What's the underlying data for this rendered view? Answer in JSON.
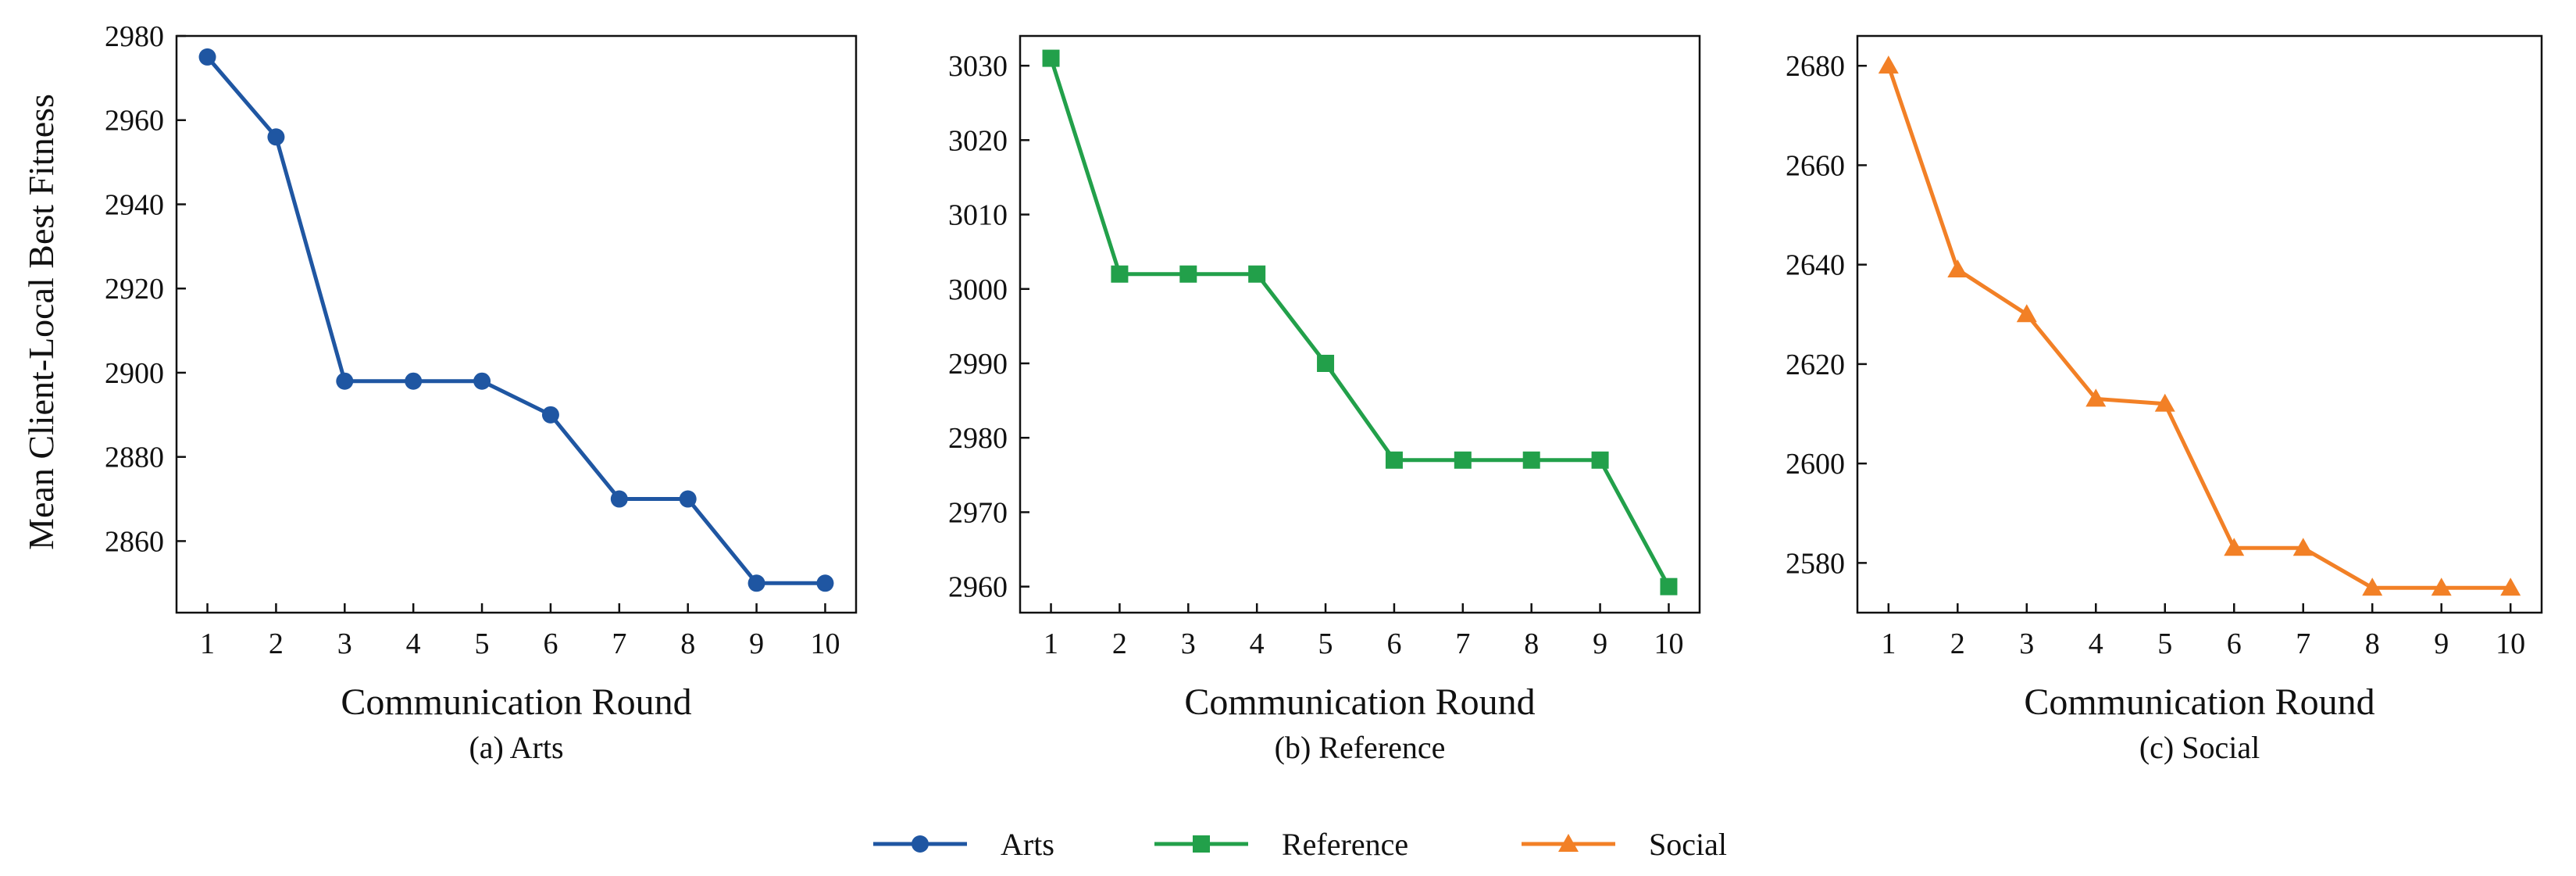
{
  "figure": {
    "ylabel": "Mean Client-Local Best Fitness"
  },
  "chart_data": [
    {
      "type": "line",
      "caption": "(a) Arts",
      "xlabel": "Communication Round",
      "ylabel": "Mean Client-Local Best Fitness",
      "x": [
        1,
        2,
        3,
        4,
        5,
        6,
        7,
        8,
        9,
        10
      ],
      "xlim": [
        0.55,
        10.45
      ],
      "ylim": [
        2843,
        2980
      ],
      "yticks": [
        2860,
        2880,
        2900,
        2920,
        2940,
        2960,
        2980
      ],
      "series": [
        {
          "name": "Arts",
          "color": "#1f56a2",
          "marker": "circle",
          "values": [
            2975,
            2956,
            2898,
            2898,
            2898,
            2890,
            2870,
            2870,
            2850,
            2850
          ]
        }
      ]
    },
    {
      "type": "line",
      "caption": "(b) Reference",
      "xlabel": "Communication Round",
      "ylabel": "",
      "x": [
        1,
        2,
        3,
        4,
        5,
        6,
        7,
        8,
        9,
        10
      ],
      "xlim": [
        0.55,
        10.45
      ],
      "ylim": [
        2956.5,
        3034
      ],
      "yticks": [
        2960,
        2970,
        2980,
        2990,
        3000,
        3010,
        3020,
        3030
      ],
      "series": [
        {
          "name": "Reference",
          "color": "#22a04a",
          "marker": "square",
          "values": [
            3031,
            3002,
            3002,
            3002,
            2990,
            2977,
            2977,
            2977,
            2977,
            2960
          ]
        }
      ]
    },
    {
      "type": "line",
      "caption": "(c) Social",
      "xlabel": "Communication Round",
      "ylabel": "",
      "x": [
        1,
        2,
        3,
        4,
        5,
        6,
        7,
        8,
        9,
        10
      ],
      "xlim": [
        0.55,
        10.45
      ],
      "ylim": [
        2570,
        2686
      ],
      "yticks": [
        2580,
        2600,
        2620,
        2640,
        2660,
        2680
      ],
      "series": [
        {
          "name": "Social",
          "color": "#f28026",
          "marker": "triangle",
          "values": [
            2680,
            2639,
            2630,
            2613,
            2612,
            2583,
            2583,
            2575,
            2575,
            2575
          ]
        }
      ]
    }
  ],
  "legend": {
    "placement": "bottom-center",
    "items": [
      {
        "label": "Arts",
        "color": "#1f56a2",
        "marker": "circle"
      },
      {
        "label": "Reference",
        "color": "#22a04a",
        "marker": "square"
      },
      {
        "label": "Social",
        "color": "#f28026",
        "marker": "triangle"
      }
    ]
  }
}
